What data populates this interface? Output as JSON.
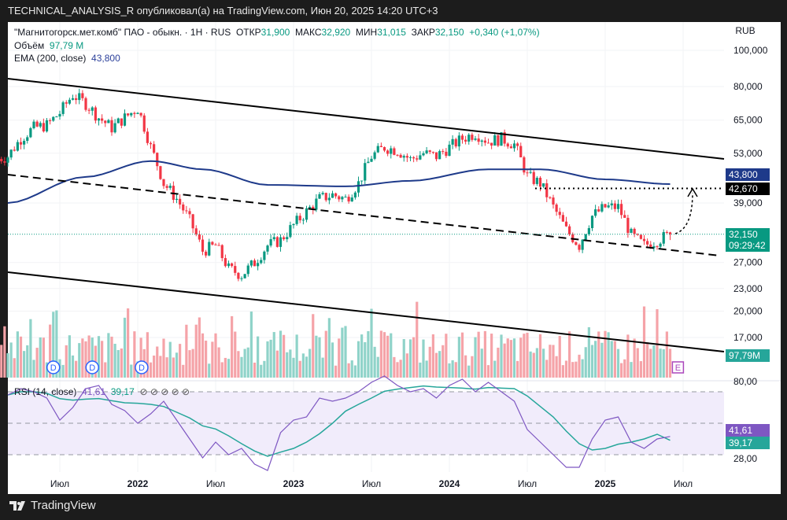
{
  "header": {
    "title": "TECHNICAL_ANALYSIS_R опубликовал(а) на TradingView.com, Июн 20, 2025 14:20 UTC+3"
  },
  "legend": {
    "symbol": "\"Магнитогорск.мет.комб\" ПАО - обыкн. · 1H · RUS",
    "open_label": "ОТКР",
    "open": "31,900",
    "high_label": "МАКС",
    "high": "32,920",
    "low_label": "МИН",
    "low": "31,015",
    "close_label": "ЗАКР",
    "close": "32,150",
    "change": "+0,340 (+1,07%)",
    "volume_label": "Объём",
    "volume": "97,79 M",
    "ema_label": "EMA (200, close)",
    "ema": "43,800",
    "rsi_label": "RSI (14, close)",
    "rsi": "41,61",
    "rsi_ma": "39,17",
    "rsi_extra": "⊘ ⊘ ⊘ ⊘ ⊘"
  },
  "price_axis": {
    "currency": "RUB",
    "ticks": [
      "100,000",
      "80,000",
      "65,000",
      "53,000",
      "39,000",
      "27,000",
      "23,000",
      "20,000",
      "17,000"
    ],
    "tick_values": [
      100000,
      80000,
      65000,
      53000,
      39000,
      27000,
      23000,
      20000,
      17000
    ],
    "tags": {
      "ema": "43,800",
      "level": "42,670",
      "price": "32,150",
      "countdown": "09:29:42",
      "volume": "97,79M"
    }
  },
  "rsi_axis": {
    "ticks": [
      "80,00",
      "28,00"
    ],
    "tags": {
      "rsi": "41,61",
      "ma": "39,17"
    }
  },
  "time_axis": {
    "labels": [
      {
        "text": "Июл",
        "month": 4,
        "bold": false
      },
      {
        "text": "2022",
        "month": 10,
        "bold": true
      },
      {
        "text": "Июл",
        "month": 16,
        "bold": false
      },
      {
        "text": "2023",
        "month": 22,
        "bold": true
      },
      {
        "text": "Июл",
        "month": 28,
        "bold": false
      },
      {
        "text": "2024",
        "month": 34,
        "bold": true
      },
      {
        "text": "Июл",
        "month": 40,
        "bold": false
      },
      {
        "text": "2025",
        "month": 46,
        "bold": true
      },
      {
        "text": "Июл",
        "month": 52,
        "bold": false
      }
    ]
  },
  "events": [
    {
      "type": "D",
      "month": 3.5
    },
    {
      "type": "D",
      "month": 6.5
    },
    {
      "type": "D",
      "month": 10.3
    },
    {
      "type": "E",
      "month": 51.6
    }
  ],
  "colors": {
    "up": "#089981",
    "down": "#f23645",
    "ema": "#1e3a8a",
    "rsi": "#7e57c2",
    "rsi_ma": "#26a69a",
    "band": "#f1ecfb"
  },
  "chart_data": {
    "type": "candlestick",
    "start_month": "2021-03",
    "monthly_close": [
      52000,
      58000,
      62000,
      63000,
      68000,
      76000,
      72000,
      66000,
      62000,
      66000,
      70000,
      55000,
      44000,
      40000,
      35000,
      29000,
      30000,
      26000,
      25000,
      27000,
      30000,
      31000,
      34000,
      37000,
      40000,
      41000,
      40000,
      44000,
      52000,
      55000,
      54000,
      51000,
      53000,
      52000,
      55000,
      58000,
      60000,
      57000,
      58000,
      56000,
      46000,
      44000,
      38000,
      33000,
      30000,
      36000,
      38000,
      38000,
      32000,
      30000,
      31000,
      32150
    ],
    "ema_200": [
      [
        0,
        39000
      ],
      [
        6,
        45800
      ],
      [
        11,
        50500
      ],
      [
        15,
        48000
      ],
      [
        20,
        43600
      ],
      [
        26,
        43200
      ],
      [
        31,
        44700
      ],
      [
        37,
        48000
      ],
      [
        41,
        48000
      ],
      [
        46,
        45100
      ],
      [
        51,
        43800
      ]
    ],
    "rsi": [
      68,
      72,
      70,
      66,
      52,
      60,
      72,
      74,
      62,
      58,
      50,
      56,
      64,
      52,
      40,
      28,
      38,
      30,
      34,
      24,
      20,
      44,
      52,
      54,
      66,
      64,
      66,
      70,
      76,
      80,
      74,
      70,
      72,
      66,
      74,
      78,
      70,
      76,
      70,
      64,
      46,
      38,
      30,
      22,
      22,
      40,
      52,
      54,
      38,
      34,
      40,
      41.61
    ],
    "rsi_ma_last": 39.17,
    "horizontal_level": 42670,
    "ylim": [
      17000,
      100000
    ],
    "rsi_levels": [
      70,
      50,
      30
    ]
  }
}
